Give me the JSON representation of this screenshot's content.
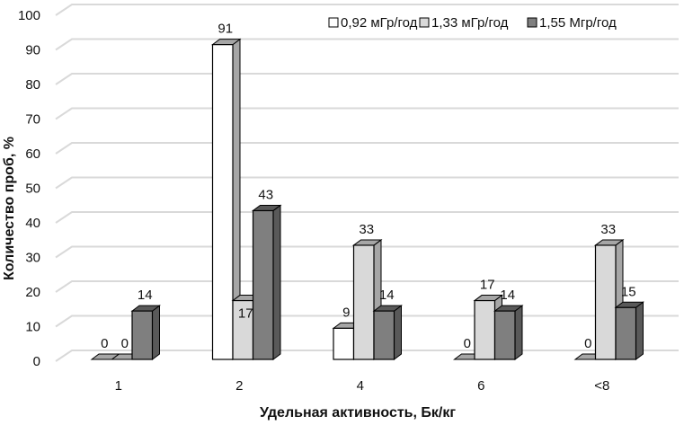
{
  "chart_data": {
    "type": "bar",
    "subtype": "3d-clustered-column",
    "categories": [
      "1",
      "2",
      "4",
      "6",
      "<8"
    ],
    "series": [
      {
        "name": "0,92 мГр/год",
        "values": [
          0,
          91,
          9,
          0,
          0
        ],
        "color": "#ffffff"
      },
      {
        "name": "1,33 мГр/год",
        "values": [
          0,
          17,
          33,
          17,
          33
        ],
        "color": "#d9d9d9"
      },
      {
        "name": "1,55 Мгр/год",
        "values": [
          14,
          43,
          14,
          14,
          15
        ],
        "color": "#7f7f7f"
      }
    ],
    "xlabel": "Удельная активность, Бк/кг",
    "ylabel": "Количество проб, %",
    "ylim": [
      0,
      100
    ],
    "yticks": [
      "0",
      "10",
      "20",
      "30",
      "40",
      "50",
      "60",
      "70",
      "80",
      "90",
      "100"
    ],
    "grid": true,
    "legend": "top-right",
    "data_labels": true
  }
}
